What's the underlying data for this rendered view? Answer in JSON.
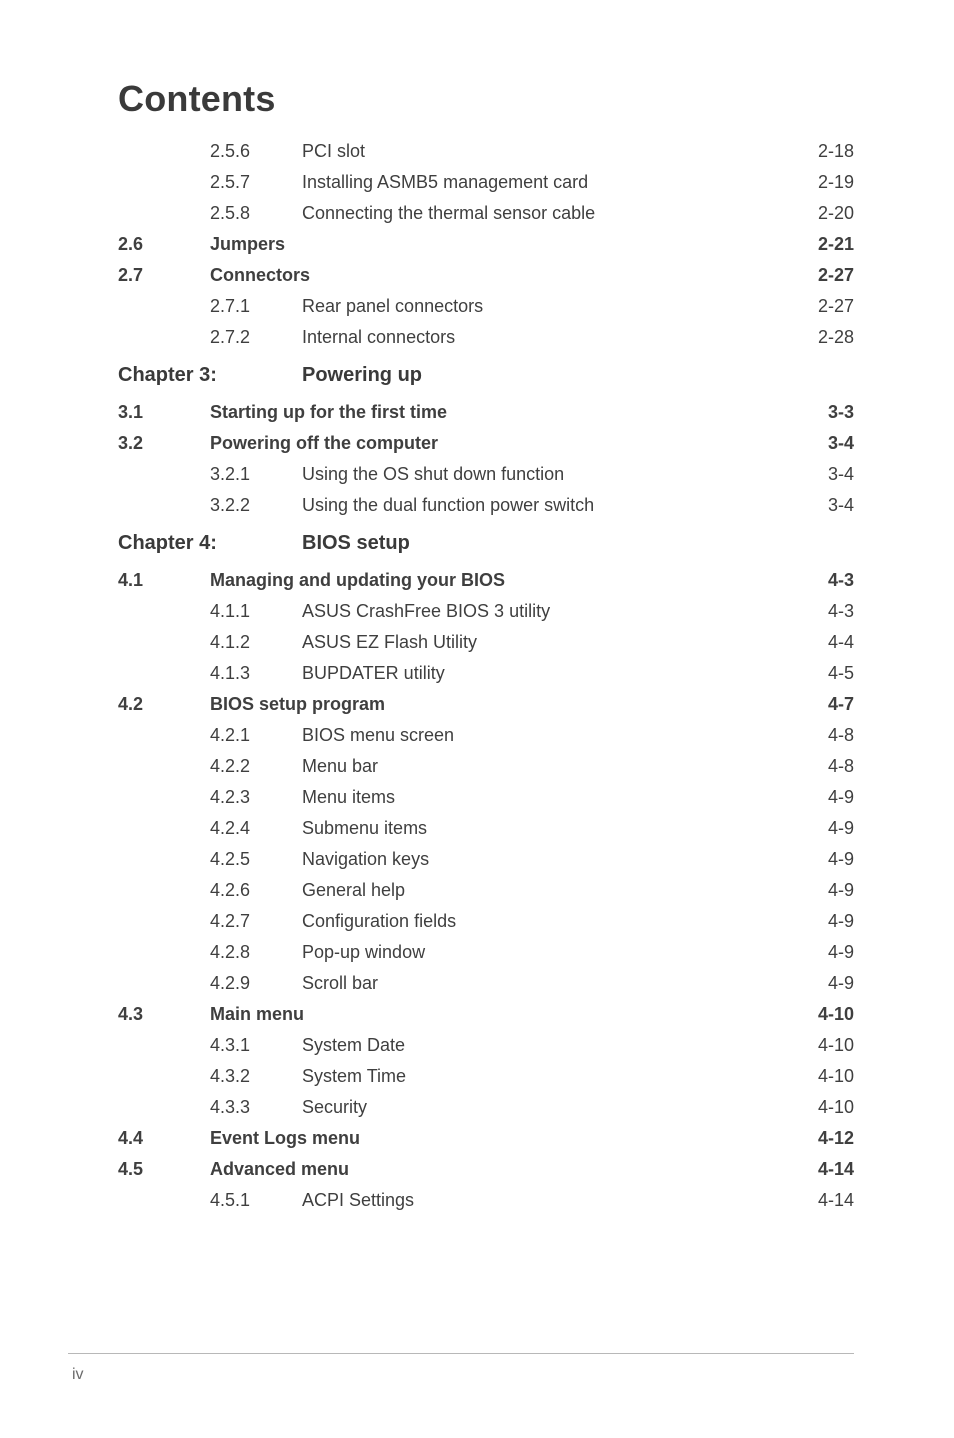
{
  "title": "Contents",
  "footer_page": "iv",
  "rows": [
    {
      "type": "sub",
      "num": "2.5.6",
      "label": "PCI slot",
      "page": "2-18"
    },
    {
      "type": "sub",
      "num": "2.5.7",
      "label": "Installing ASMB5 management card",
      "page": "2-19"
    },
    {
      "type": "sub",
      "num": "2.5.8",
      "label": "Connecting the thermal sensor cable",
      "page": "2-20"
    },
    {
      "type": "sec",
      "num": "2.6",
      "label": "Jumpers",
      "page": "2-21"
    },
    {
      "type": "sec",
      "num": "2.7",
      "label": "Connectors",
      "page": "2-27"
    },
    {
      "type": "sub",
      "num": "2.7.1",
      "label": "Rear panel connectors",
      "page": "2-27"
    },
    {
      "type": "sub",
      "num": "2.7.2",
      "label": "Internal connectors",
      "page": "2-28"
    },
    {
      "type": "chapter",
      "chap": "Chapter 3:",
      "title": "Powering up"
    },
    {
      "type": "sec",
      "num": "3.1",
      "label": "Starting up for the first time",
      "page": "3-3"
    },
    {
      "type": "sec",
      "num": "3.2",
      "label": "Powering off the computer",
      "page": "3-4"
    },
    {
      "type": "sub",
      "num": "3.2.1",
      "label": "Using the OS shut down function",
      "page": "3-4"
    },
    {
      "type": "sub",
      "num": "3.2.2",
      "label": "Using the dual function power switch",
      "page": "3-4"
    },
    {
      "type": "chapter",
      "chap": "Chapter 4:",
      "title": "BIOS setup"
    },
    {
      "type": "sec",
      "num": "4.1",
      "label": "Managing and updating your BIOS",
      "page": "4-3"
    },
    {
      "type": "sub",
      "num": "4.1.1",
      "label": "ASUS CrashFree BIOS 3 utility",
      "page": "4-3"
    },
    {
      "type": "sub",
      "num": "4.1.2",
      "label": "ASUS EZ Flash Utility",
      "page": "4-4"
    },
    {
      "type": "sub",
      "num": "4.1.3",
      "label": "BUPDATER utility",
      "page": "4-5"
    },
    {
      "type": "sec",
      "num": "4.2",
      "label": "BIOS setup program",
      "page": "4-7"
    },
    {
      "type": "sub",
      "num": "4.2.1",
      "label": "BIOS menu screen",
      "page": "4-8"
    },
    {
      "type": "sub",
      "num": "4.2.2",
      "label": "Menu bar",
      "page": "4-8"
    },
    {
      "type": "sub",
      "num": "4.2.3",
      "label": "Menu items",
      "page": "4-9"
    },
    {
      "type": "sub",
      "num": "4.2.4",
      "label": "Submenu items",
      "page": "4-9"
    },
    {
      "type": "sub",
      "num": "4.2.5",
      "label": "Navigation keys",
      "page": "4-9"
    },
    {
      "type": "sub",
      "num": "4.2.6",
      "label": "General help",
      "page": "4-9"
    },
    {
      "type": "sub",
      "num": "4.2.7",
      "label": "Configuration fields",
      "page": "4-9"
    },
    {
      "type": "sub",
      "num": "4.2.8",
      "label": "Pop-up window",
      "page": "4-9"
    },
    {
      "type": "sub",
      "num": "4.2.9",
      "label": "Scroll bar",
      "page": "4-9"
    },
    {
      "type": "sec",
      "num": "4.3",
      "label": "Main menu",
      "page": "4-10"
    },
    {
      "type": "sub",
      "num": "4.3.1",
      "label": "System Date",
      "page": "4-10"
    },
    {
      "type": "sub",
      "num": "4.3.2",
      "label": "System Time",
      "page": "4-10"
    },
    {
      "type": "sub",
      "num": "4.3.3",
      "label": "Security",
      "page": "4-10"
    },
    {
      "type": "sec",
      "num": "4.4",
      "label": "Event Logs menu",
      "page": "4-12"
    },
    {
      "type": "sec",
      "num": "4.5",
      "label": "Advanced menu",
      "page": "4-14"
    },
    {
      "type": "sub",
      "num": "4.5.1",
      "label": "ACPI Settings",
      "page": "4-14"
    }
  ]
}
